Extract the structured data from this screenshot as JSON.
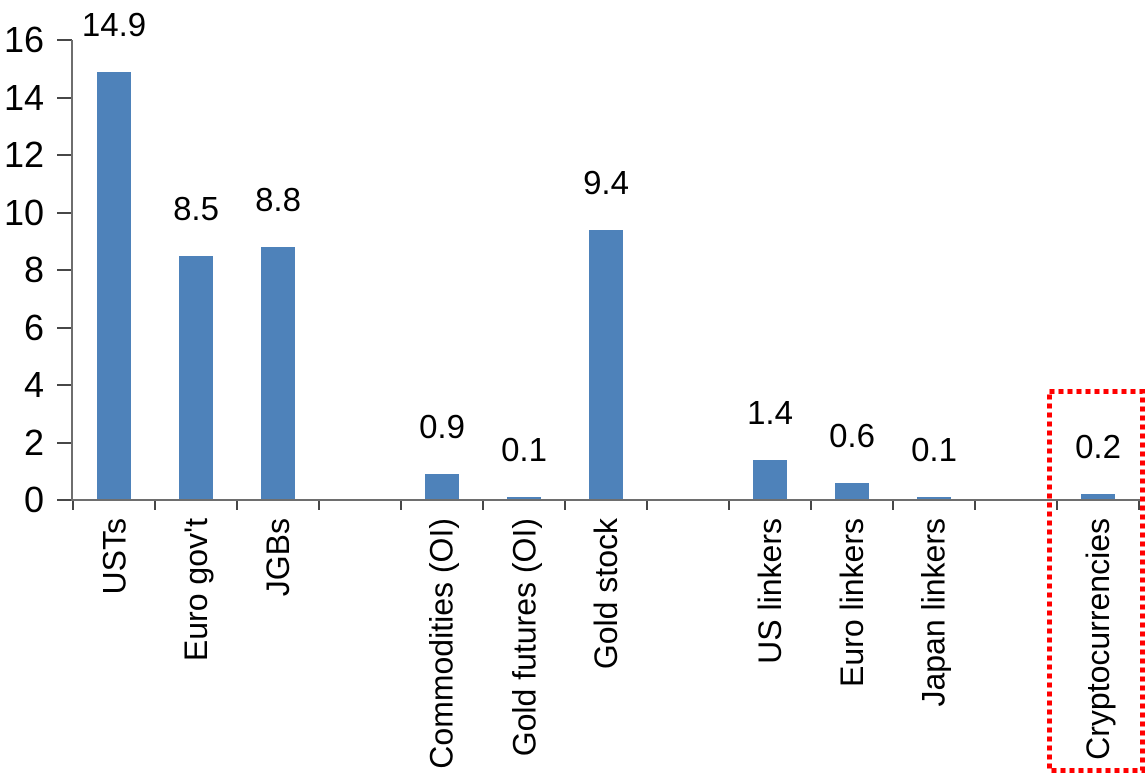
{
  "chart_data": {
    "type": "bar",
    "title": "",
    "xlabel": "",
    "ylabel": "",
    "categories": [
      "USTs",
      "Euro gov't",
      "JGBs",
      "Commodities (OI)",
      "Gold futures (OI)",
      "Gold stock",
      "US linkers",
      "Euro linkers",
      "Japan linkers",
      "Cryptocurrencies"
    ],
    "values": [
      14.9,
      8.5,
      8.8,
      0.9,
      0.1,
      9.4,
      1.4,
      0.6,
      0.1,
      0.2
    ],
    "value_labels": [
      "14.9",
      "8.5",
      "8.8",
      "0.9",
      "0.1",
      "9.4",
      "1.4",
      "0.6",
      "0.1",
      "0.2"
    ],
    "groups": [
      [
        0,
        1,
        2
      ],
      [
        3,
        4,
        5
      ],
      [
        6,
        7,
        8
      ],
      [
        9
      ]
    ],
    "ylim": [
      0,
      16
    ],
    "yticks": [
      0,
      2,
      4,
      6,
      8,
      10,
      12,
      14,
      16
    ],
    "ytick_labels": [
      "0",
      "2",
      "4",
      "6",
      "8",
      "10",
      "12",
      "14",
      "16"
    ],
    "grid": false,
    "legend": false,
    "colors": {
      "bar": "#4E82BA",
      "axis_line": "#6E6E6E",
      "tick_mark": "#474747",
      "text": "#000000",
      "highlight_box": "#FF0000"
    },
    "highlight": {
      "category": "Cryptocurrencies",
      "style": "dotted-box"
    }
  }
}
